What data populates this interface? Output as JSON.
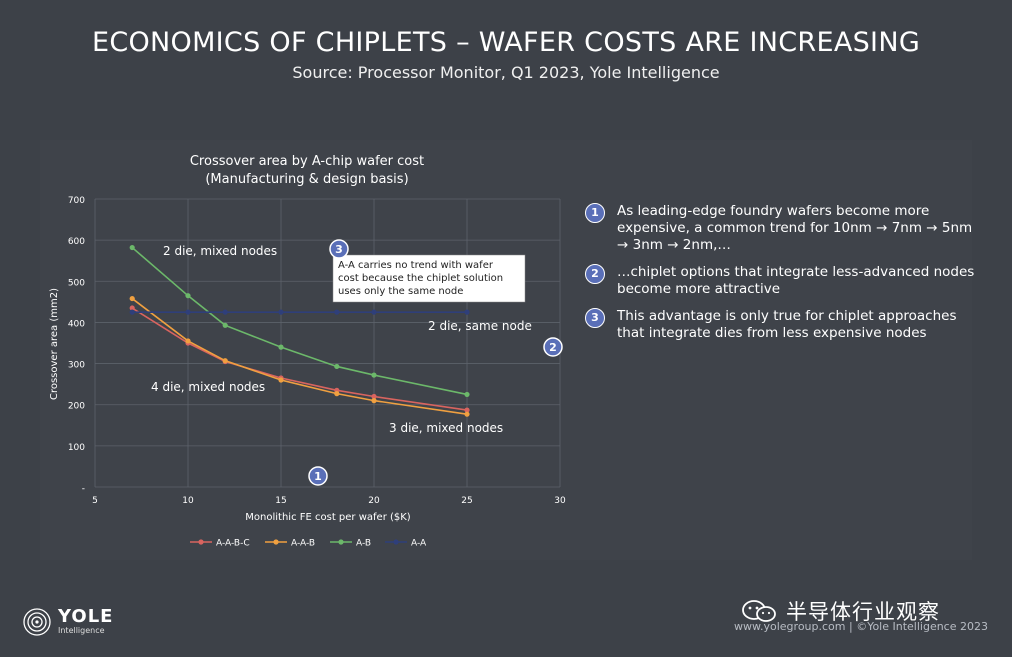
{
  "slide": {
    "title": "ECONOMICS OF CHIPLETS – WAFER COSTS ARE INCREASING",
    "subtitle": "Source: Processor Monitor, Q1 2023, Yole Intelligence"
  },
  "chart_data": {
    "type": "line",
    "title_line1": "Crossover area by A-chip wafer cost",
    "title_line2": "(Manufacturing & design basis)",
    "xlabel": "Monolithic FE cost per wafer ($K)",
    "ylabel": "Crossover area (mm2)",
    "xlim": [
      5,
      30
    ],
    "ylim": [
      0,
      700
    ],
    "x_ticks": [
      "5",
      "10",
      "15",
      "20",
      "25",
      "30"
    ],
    "y_ticks": [
      "-",
      "100",
      "200",
      "300",
      "400",
      "500",
      "600",
      "700"
    ],
    "grid": true,
    "legend_position": "bottom",
    "series": [
      {
        "name": "A-A-B-C",
        "color": "#d9645f",
        "x": [
          7,
          10,
          12,
          15,
          18,
          20,
          25
        ],
        "y": [
          435,
          350,
          305,
          265,
          235,
          220,
          187
        ]
      },
      {
        "name": "A-A-B",
        "color": "#f0a040",
        "x": [
          7,
          10,
          12,
          15,
          18,
          20,
          25
        ],
        "y": [
          458,
          355,
          307,
          260,
          227,
          210,
          177
        ]
      },
      {
        "name": "A-B",
        "color": "#6cb86a",
        "x": [
          7,
          10,
          12,
          15,
          18,
          20,
          25
        ],
        "y": [
          582,
          465,
          393,
          340,
          293,
          272,
          225
        ]
      },
      {
        "name": "A-A",
        "color": "#2f3f7a",
        "x": [
          7,
          10,
          12,
          15,
          18,
          20,
          25
        ],
        "y": [
          425,
          425,
          425,
          425,
          425,
          425,
          425
        ]
      }
    ],
    "annotations": {
      "two_die_mixed": "2 die, mixed nodes",
      "two_die_same": "2 die, same node",
      "four_die_mixed": "4 die, mixed nodes",
      "three_die_mixed": "3 die, mixed nodes",
      "callout_line1": "A-A carries no trend with wafer",
      "callout_line2": "cost because the chiplet solution",
      "callout_line3": "uses only the same node",
      "marker_1": "1",
      "marker_2": "2",
      "marker_3": "3"
    }
  },
  "bullets": [
    {
      "num": "1",
      "text": "As leading-edge foundry wafers become more expensive, a common trend for 10nm → 7nm → 5nm → 3nm → 2nm,…"
    },
    {
      "num": "2",
      "text": "…chiplet options that integrate less-advanced nodes become more attractive"
    },
    {
      "num": "3",
      "text": "This advantage is only true for chiplet approaches that integrate dies from less expensive nodes"
    }
  ],
  "logo": {
    "name": "YOLE",
    "sub": "Intelligence"
  },
  "footer": "www.yolegroup.com | ©Yole Intelligence 2023",
  "watermark": "半导体行业观察"
}
